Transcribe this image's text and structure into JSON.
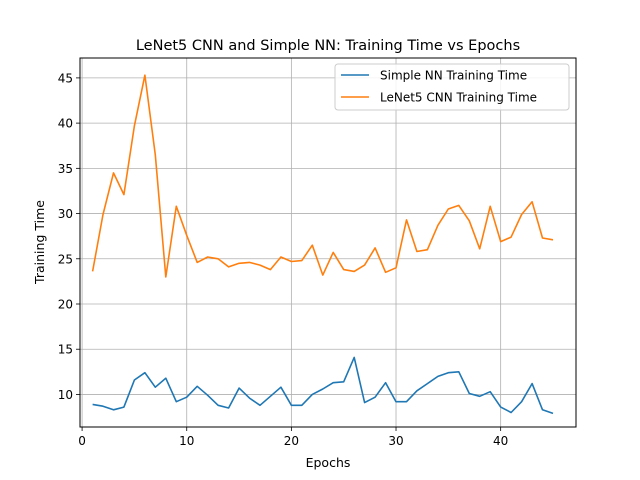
{
  "chart_data": {
    "type": "line",
    "title": "LeNet5 CNN and Simple NN: Training Time vs Epochs",
    "xlabel": "Epochs",
    "ylabel": "Training Time",
    "xlim": [
      -0.2,
      47.2
    ],
    "ylim": [
      6.4,
      47.2
    ],
    "xticks": [
      0,
      10,
      20,
      30,
      40
    ],
    "yticks": [
      10,
      15,
      20,
      25,
      30,
      35,
      40,
      45
    ],
    "grid": true,
    "legend_position": "top-right",
    "x": [
      1,
      2,
      3,
      4,
      5,
      6,
      7,
      8,
      9,
      10,
      11,
      12,
      13,
      14,
      15,
      16,
      17,
      18,
      19,
      20,
      21,
      22,
      23,
      24,
      25,
      26,
      27,
      28,
      29,
      30,
      31,
      32,
      33,
      34,
      35,
      36,
      37,
      38,
      39,
      40,
      41,
      42,
      43,
      44,
      45
    ],
    "series": [
      {
        "name": "Simple NN Training Time",
        "color": "#1f77b4",
        "values": [
          8.9,
          8.7,
          8.3,
          8.6,
          11.6,
          12.4,
          10.8,
          11.8,
          9.2,
          9.7,
          10.9,
          9.9,
          8.8,
          8.5,
          10.7,
          9.6,
          8.8,
          9.8,
          10.8,
          8.8,
          8.8,
          10.0,
          10.6,
          11.3,
          11.4,
          14.1,
          9.1,
          9.7,
          11.3,
          9.2,
          9.2,
          10.4,
          11.2,
          12.0,
          12.4,
          12.5,
          10.1,
          9.8,
          10.3,
          8.6,
          8.0,
          9.2,
          11.2,
          8.3,
          7.9
        ]
      },
      {
        "name": "LeNet5 CNN Training Time",
        "color": "#ff7f0e",
        "values": [
          23.6,
          29.9,
          34.5,
          32.1,
          39.7,
          45.3,
          36.5,
          23.0,
          30.8,
          27.6,
          24.6,
          25.2,
          25.0,
          24.1,
          24.5,
          24.6,
          24.3,
          23.8,
          25.2,
          24.7,
          24.8,
          26.5,
          23.2,
          25.7,
          23.8,
          23.6,
          24.3,
          26.2,
          23.5,
          24.0,
          29.3,
          25.8,
          26.0,
          28.7,
          30.5,
          30.9,
          29.2,
          26.1,
          30.8,
          26.9,
          27.4,
          29.9,
          31.3,
          27.3,
          27.1
        ]
      }
    ]
  }
}
